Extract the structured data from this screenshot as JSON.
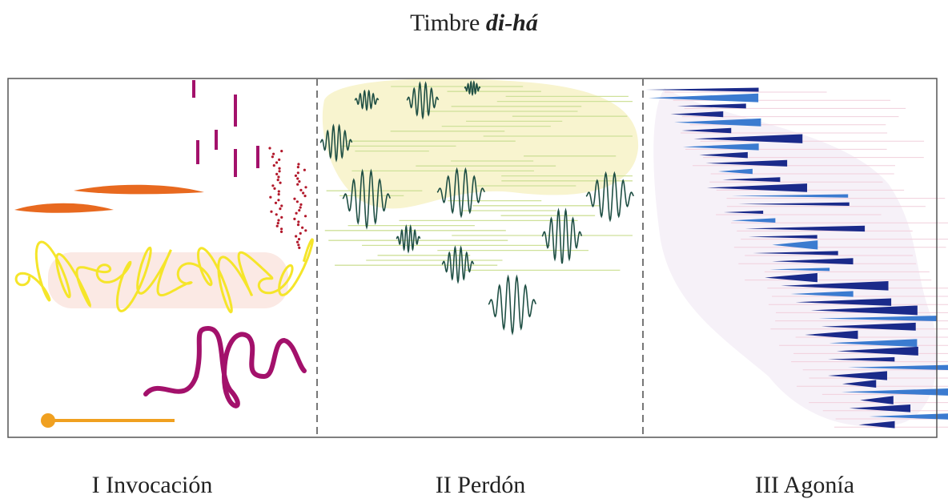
{
  "title": {
    "text": "Timbre",
    "emphasis": "di-há"
  },
  "sections": [
    {
      "label": "I Invocación"
    },
    {
      "label": "II Perdón"
    },
    {
      "label": "III Agonía"
    }
  ]
}
